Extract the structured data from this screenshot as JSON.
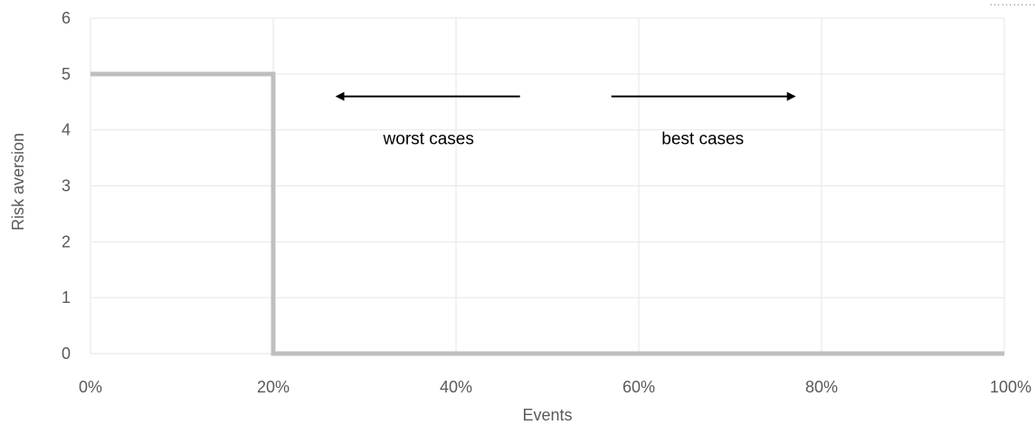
{
  "chart_data": {
    "type": "line",
    "title": "",
    "xlabel": "Events",
    "ylabel": "Risk aversion",
    "xlim": [
      0,
      100
    ],
    "ylim": [
      0,
      6
    ],
    "x_ticks": [
      "0%",
      "20%",
      "40%",
      "60%",
      "80%",
      "100%"
    ],
    "y_ticks": [
      "0",
      "1",
      "2",
      "3",
      "4",
      "5",
      "6"
    ],
    "grid": true,
    "legend": "none",
    "series": [
      {
        "color": "#bfbfbf",
        "step": true,
        "points": [
          {
            "x": 0,
            "y": 5
          },
          {
            "x": 20,
            "y": 5
          },
          {
            "x": 20,
            "y": 0
          },
          {
            "x": 100,
            "y": 0
          }
        ]
      }
    ],
    "annotations": [
      {
        "text": "worst cases",
        "arrow_direction": "left",
        "arrow_from": 47,
        "arrow_to": 27,
        "arrow_y": 4.6
      },
      {
        "text": "best cases",
        "arrow_direction": "right",
        "arrow_from": 57,
        "arrow_to": 77,
        "arrow_y": 4.6
      }
    ]
  },
  "corner_text": "…………"
}
